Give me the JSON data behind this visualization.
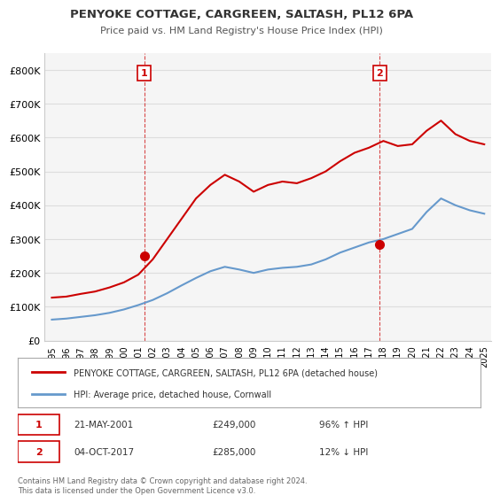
{
  "title": "PENYOKE COTTAGE, CARGREEN, SALTASH, PL12 6PA",
  "subtitle": "Price paid vs. HM Land Registry's House Price Index (HPI)",
  "legend_line1": "PENYOKE COTTAGE, CARGREEN, SALTASH, PL12 6PA (detached house)",
  "legend_line2": "HPI: Average price, detached house, Cornwall",
  "annotation1_label": "1",
  "annotation1_date": "21-MAY-2001",
  "annotation1_price": "£249,000",
  "annotation1_hpi": "96% ↑ HPI",
  "annotation2_label": "2",
  "annotation2_date": "04-OCT-2017",
  "annotation2_price": "£285,000",
  "annotation2_hpi": "12% ↓ HPI",
  "footer": "Contains HM Land Registry data © Crown copyright and database right 2024.\nThis data is licensed under the Open Government Licence v3.0.",
  "red_color": "#cc0000",
  "blue_color": "#6699cc",
  "annotation_color": "#cc0000",
  "grid_color": "#dddddd",
  "background_color": "#ffffff",
  "plot_bg_color": "#f5f5f5",
  "ylim": [
    0,
    850000
  ],
  "yticks": [
    0,
    100000,
    200000,
    300000,
    400000,
    500000,
    600000,
    700000,
    800000
  ],
  "ytick_labels": [
    "£0",
    "£100K",
    "£200K",
    "£300K",
    "£400K",
    "£500K",
    "£600K",
    "£700K",
    "£800K"
  ],
  "years": [
    1995,
    1996,
    1997,
    1998,
    1999,
    2000,
    2001,
    2002,
    2003,
    2004,
    2005,
    2006,
    2007,
    2008,
    2009,
    2010,
    2011,
    2012,
    2013,
    2014,
    2015,
    2016,
    2017,
    2018,
    2019,
    2020,
    2021,
    2022,
    2023,
    2024,
    2025
  ],
  "red_x": [
    2001.4,
    2017.75
  ],
  "red_y": [
    249000,
    285000
  ],
  "hpi_x": [
    1995,
    1996,
    1997,
    1998,
    1999,
    2000,
    2001,
    2002,
    2003,
    2004,
    2005,
    2006,
    2007,
    2008,
    2009,
    2010,
    2011,
    2012,
    2013,
    2014,
    2015,
    2016,
    2017,
    2018,
    2019,
    2020,
    2021,
    2022,
    2023,
    2024,
    2025
  ],
  "hpi_y": [
    62000,
    65000,
    70000,
    75000,
    82000,
    92000,
    105000,
    120000,
    140000,
    163000,
    185000,
    205000,
    218000,
    210000,
    200000,
    210000,
    215000,
    218000,
    225000,
    240000,
    260000,
    275000,
    290000,
    300000,
    315000,
    330000,
    380000,
    420000,
    400000,
    385000,
    375000
  ],
  "price_x": [
    1995,
    1996,
    1997,
    1998,
    1999,
    2000,
    2001,
    2002,
    2003,
    2004,
    2005,
    2006,
    2007,
    2008,
    2009,
    2010,
    2011,
    2012,
    2013,
    2014,
    2015,
    2016,
    2017,
    2018,
    2019,
    2020,
    2021,
    2022,
    2023,
    2024,
    2025
  ],
  "price_y": [
    127000,
    130000,
    138000,
    145000,
    157000,
    172000,
    195000,
    240000,
    300000,
    360000,
    420000,
    460000,
    490000,
    470000,
    440000,
    460000,
    470000,
    465000,
    480000,
    500000,
    530000,
    555000,
    570000,
    590000,
    575000,
    580000,
    620000,
    650000,
    610000,
    590000,
    580000
  ],
  "vline1_x": 2001.4,
  "vline2_x": 2017.75,
  "xlim": [
    1994.5,
    2025.5
  ]
}
